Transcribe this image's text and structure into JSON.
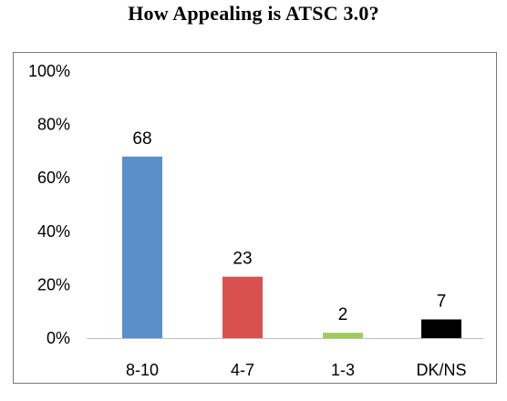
{
  "title": "How Appealing is ATSC 3.0?",
  "chart_data": {
    "type": "bar",
    "title": "How Appealing is ATSC 3.0?",
    "categories": [
      "8-10",
      "4-7",
      "1-3",
      "DK/NS"
    ],
    "values": [
      68,
      23,
      2,
      7
    ],
    "data_labels": [
      "68",
      "23",
      "2",
      "7"
    ],
    "colors": [
      "#5b8fc9",
      "#d9514e",
      "#9ccc5c",
      "#000000"
    ],
    "ylim": [
      0,
      100
    ],
    "yticks": [
      "0%",
      "20%",
      "40%",
      "60%",
      "80%",
      "100%"
    ],
    "xlabel": "",
    "ylabel": "",
    "grid": false,
    "legend": false
  }
}
